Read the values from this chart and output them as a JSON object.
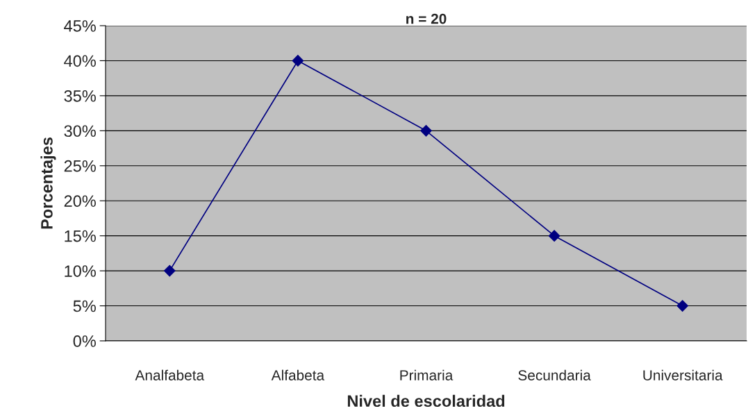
{
  "chart_data": {
    "type": "line",
    "title": "n = 20",
    "xlabel": "Nivel de escolaridad",
    "ylabel": "Porcentajes",
    "categories": [
      "Analfabeta",
      "Alfabeta",
      "Primaria",
      "Secundaria",
      "Universitaria"
    ],
    "series": [
      {
        "color": "#000080",
        "values": [
          10,
          40,
          30,
          15,
          5
        ]
      }
    ],
    "ylim": [
      0,
      45
    ],
    "yticks": [
      {
        "value": 0,
        "label": "0%"
      },
      {
        "value": 5,
        "label": "5%"
      },
      {
        "value": 10,
        "label": "10%"
      },
      {
        "value": 15,
        "label": "15%"
      },
      {
        "value": 20,
        "label": "20%"
      },
      {
        "value": 25,
        "label": "25%"
      },
      {
        "value": 30,
        "label": "30%"
      },
      {
        "value": 35,
        "label": "35%"
      },
      {
        "value": 40,
        "label": "40%"
      },
      {
        "value": 45,
        "label": "45%"
      }
    ],
    "grid": "y",
    "marker": "diamond",
    "line_style": "solid",
    "legend": false
  }
}
